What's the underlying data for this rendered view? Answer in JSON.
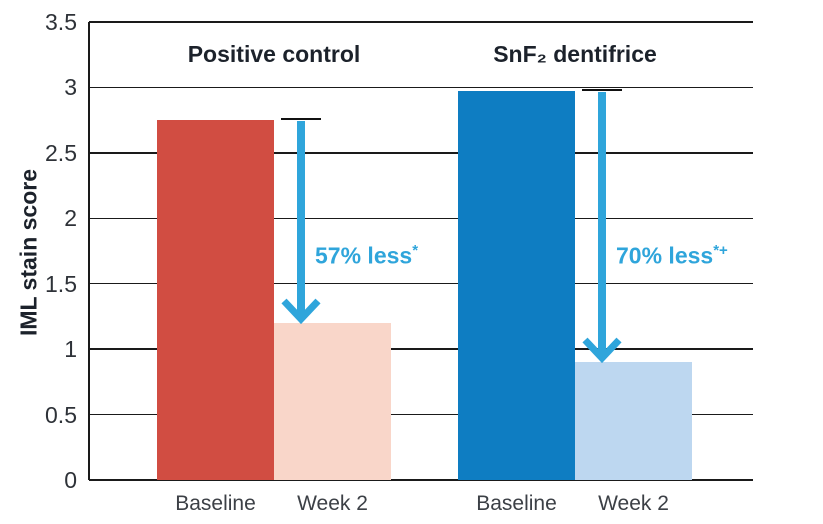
{
  "chart_data": {
    "type": "bar",
    "title": "",
    "xlabel": "",
    "ylabel": "IML stain score",
    "ylim": [
      0,
      3.5
    ],
    "yticks": [
      "0",
      "0.5",
      "1",
      "1.5",
      "2",
      "2.5",
      "3",
      "3.5"
    ],
    "grid": "horizontal",
    "legend_position": "none",
    "groups": [
      {
        "title": "Positive control",
        "categories": [
          "Baseline",
          "Week 2"
        ],
        "bars": [
          {
            "label": "Baseline",
            "value": 2.75,
            "color": "#d14d42"
          },
          {
            "label": "Week 2",
            "value": 1.2,
            "color": "#f9d6c9"
          }
        ],
        "annotation": {
          "text": "57% less",
          "sup": "*"
        }
      },
      {
        "title": "SnF₂ dentifrice",
        "categories": [
          "Baseline",
          "Week 2"
        ],
        "bars": [
          {
            "label": "Baseline",
            "value": 2.97,
            "color": "#0e7dc2"
          },
          {
            "label": "Week 2",
            "value": 0.9,
            "color": "#bdd7f0"
          }
        ],
        "annotation": {
          "text": "70% less",
          "sup": "*+"
        }
      }
    ],
    "colors": {
      "arrow": "#2fa5db",
      "gridline": "#1a1a1a",
      "title_text": "#1c222b",
      "tick_text": "#2e3238"
    }
  }
}
